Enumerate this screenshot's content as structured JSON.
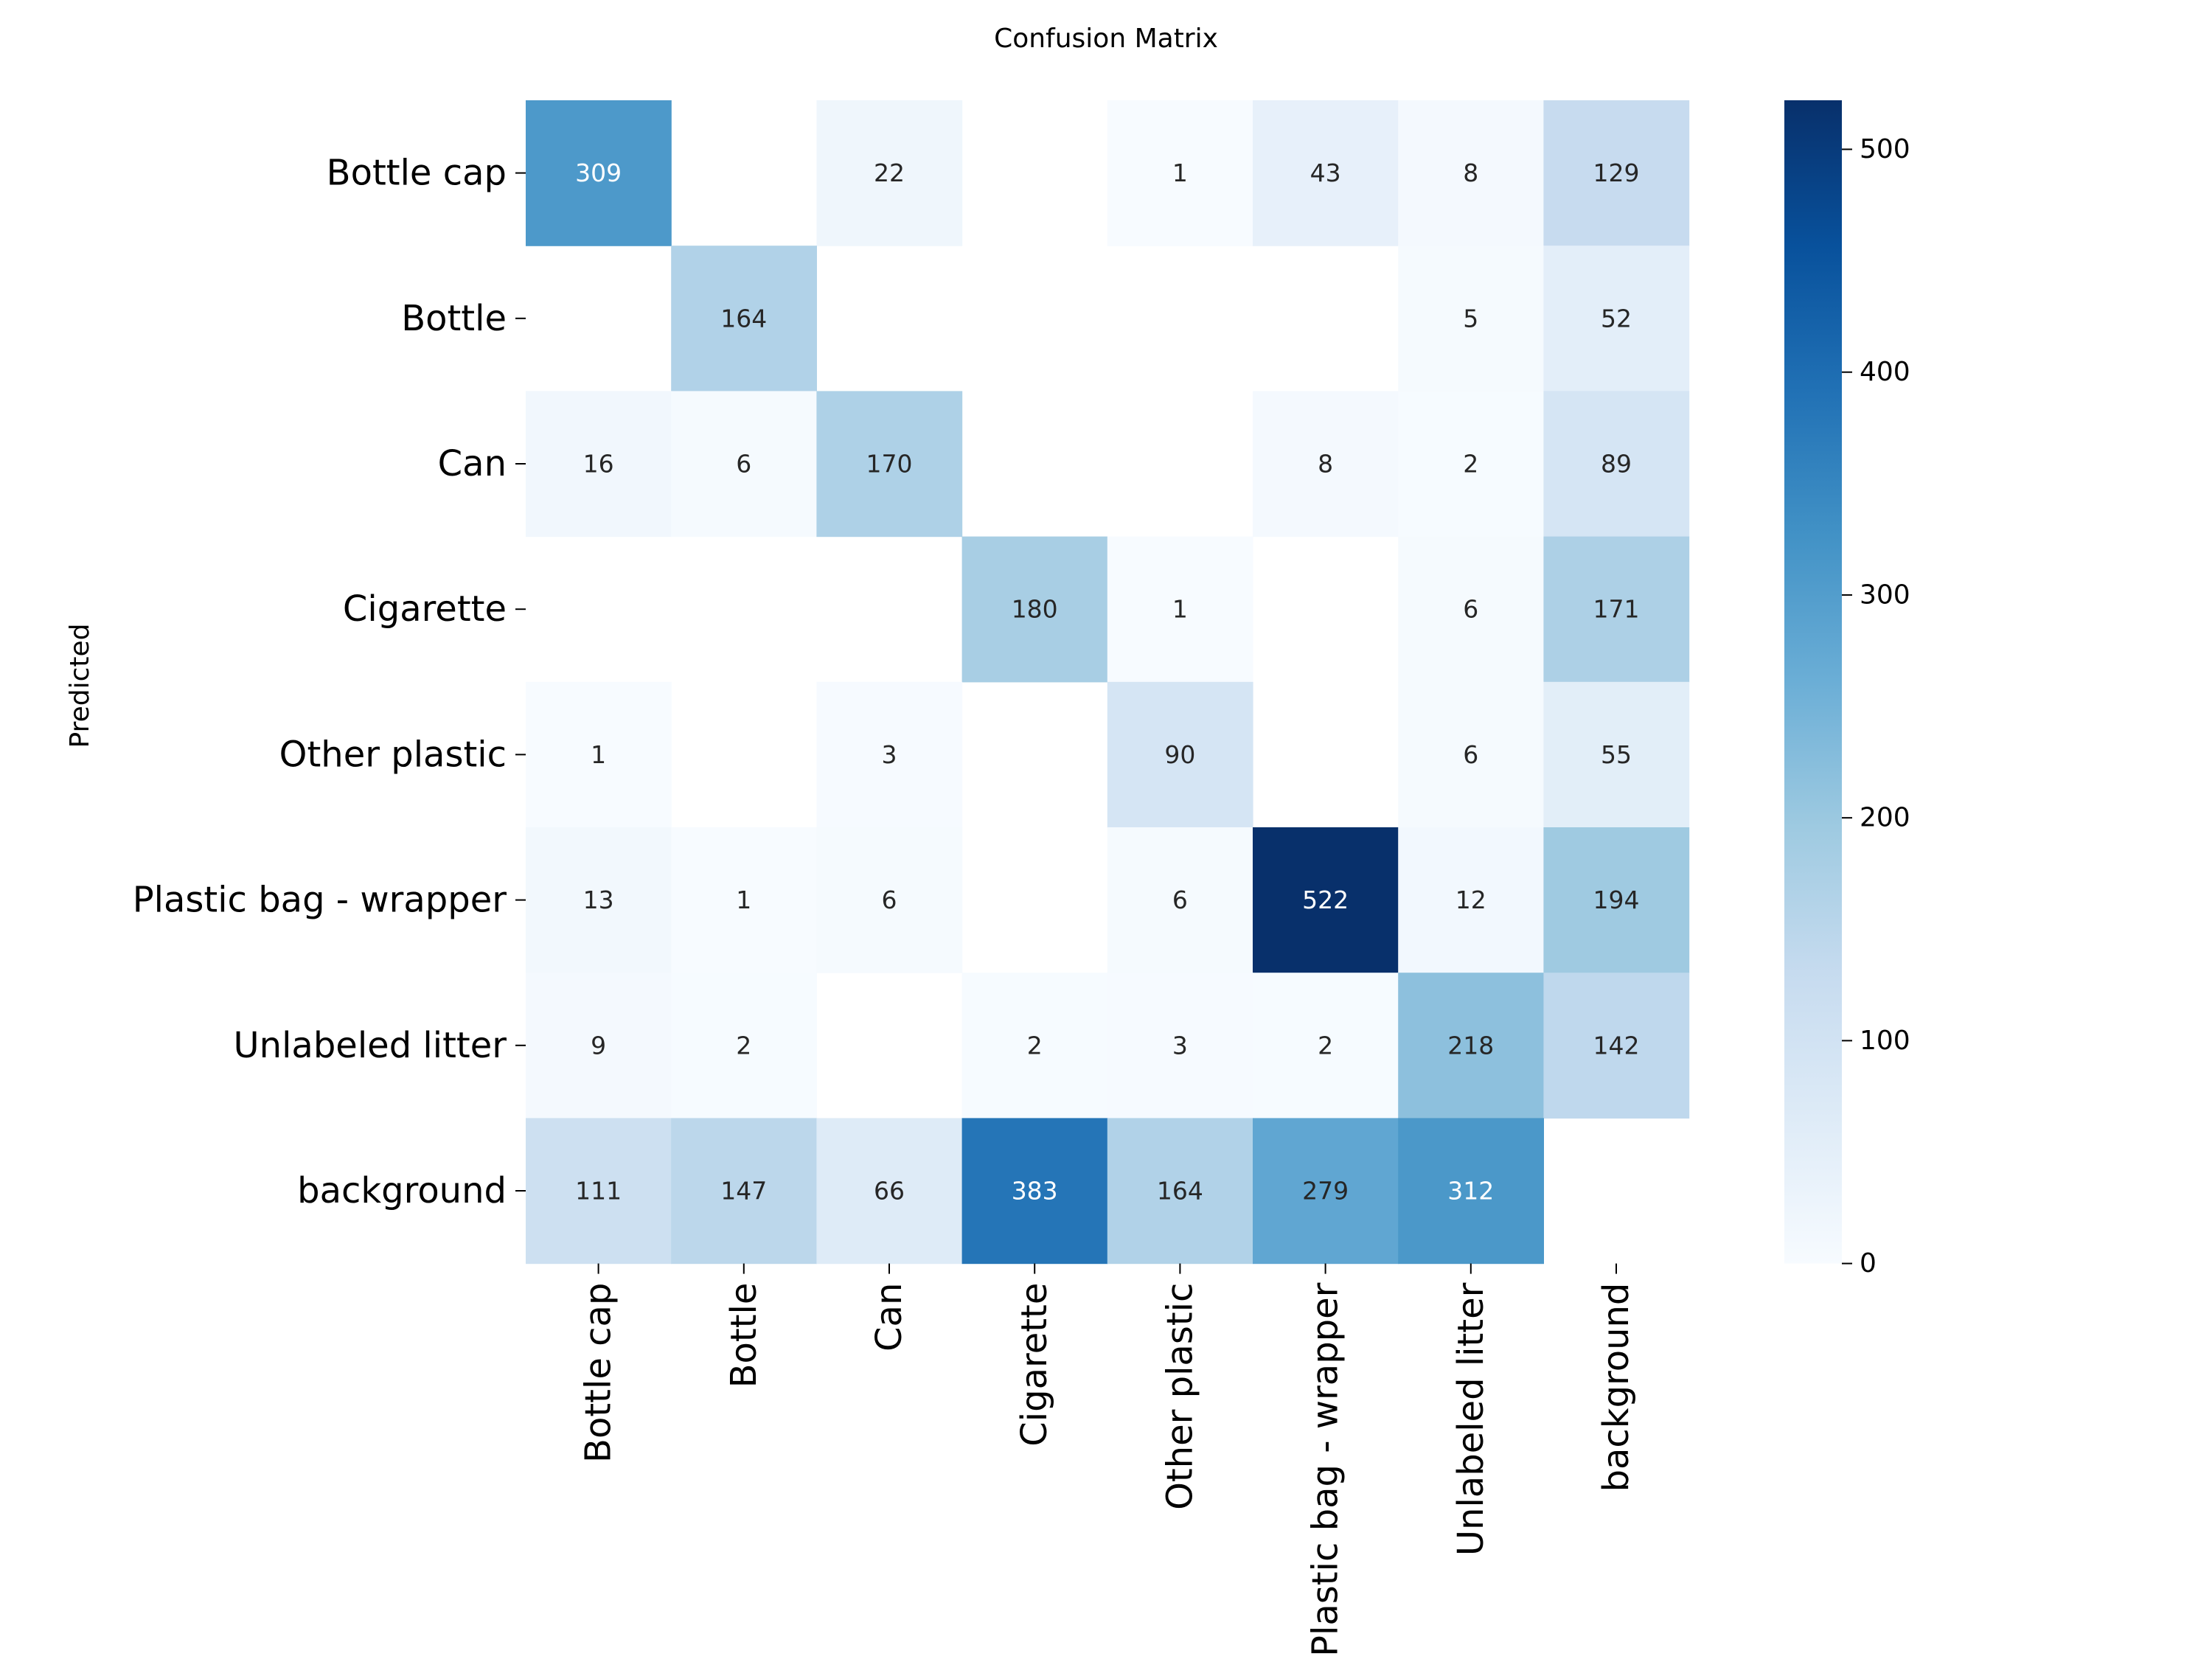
{
  "chart_data": {
    "type": "heatmap",
    "title": "Confusion Matrix",
    "ylabel": "Predicted",
    "xlabel": "",
    "row_labels": [
      "Bottle cap",
      "Bottle",
      "Can",
      "Cigarette",
      "Other plastic",
      "Plastic bag - wrapper",
      "Unlabeled litter",
      "background"
    ],
    "col_labels": [
      "Bottle cap",
      "Bottle",
      "Can",
      "Cigarette",
      "Other plastic",
      "Plastic bag - wrapper",
      "Unlabeled litter",
      "background"
    ],
    "values": [
      [
        309,
        0,
        22,
        0,
        1,
        43,
        8,
        129
      ],
      [
        0,
        164,
        0,
        0,
        0,
        0,
        5,
        52
      ],
      [
        16,
        6,
        170,
        0,
        0,
        8,
        2,
        89
      ],
      [
        0,
        0,
        0,
        180,
        1,
        0,
        6,
        171
      ],
      [
        1,
        0,
        3,
        0,
        90,
        0,
        6,
        55
      ],
      [
        13,
        1,
        6,
        0,
        6,
        522,
        12,
        194
      ],
      [
        9,
        2,
        0,
        2,
        3,
        2,
        218,
        142
      ],
      [
        111,
        147,
        66,
        383,
        164,
        279,
        312,
        0
      ]
    ],
    "colorbar": {
      "colormap": "Blues",
      "range": [
        0,
        522
      ],
      "ticks": [
        0,
        100,
        200,
        300,
        400,
        500
      ]
    },
    "zero_cells_blank": true,
    "grid": false,
    "legend": "none"
  }
}
